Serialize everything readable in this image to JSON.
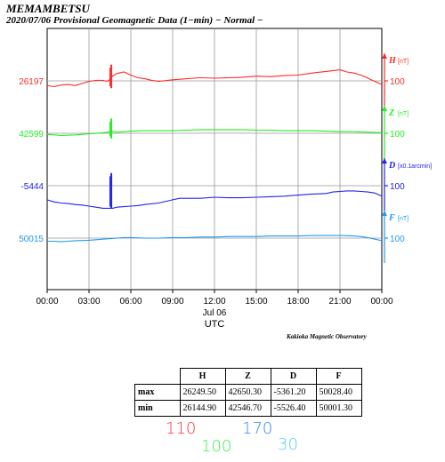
{
  "header": {
    "title": "MEMAMBETSU",
    "subtitle": "2020/07/06  Provisional Geomagnetic Data (1−min)  − Normal −"
  },
  "chart_data": {
    "type": "line",
    "x_ticks": [
      "00:00",
      "03:00",
      "06:00",
      "09:00",
      "12:00",
      "15:00",
      "18:00",
      "21:00",
      "00:00"
    ],
    "x_date_label": "Jul 06",
    "xlabel": "UTC",
    "series": [
      {
        "name": "H",
        "unit": "[nT]",
        "base_value": "26197",
        "scale_label": "100",
        "color": "#ff2a2a",
        "x": [
          0,
          0.5,
          1,
          1.5,
          2,
          2.5,
          3,
          3.5,
          4,
          4.3,
          4.5,
          4.6,
          4.7,
          5,
          5.5,
          6,
          6.5,
          7,
          7.5,
          8,
          9,
          10,
          11,
          12,
          13,
          14,
          15,
          16,
          17,
          18,
          19,
          20,
          21,
          21.5,
          22,
          22.5,
          23,
          23.5,
          24
        ],
        "y": [
          26188,
          26186,
          26189,
          26190,
          26188,
          26192,
          26196,
          26198,
          26198,
          26196,
          26200,
          26203,
          26206,
          26211,
          26214,
          26208,
          26203,
          26201,
          26198,
          26196,
          26199,
          26201,
          26203,
          26202,
          26203,
          26204,
          26206,
          26205,
          26207,
          26208,
          26212,
          26215,
          26218,
          26214,
          26212,
          26208,
          26202,
          26196,
          26190
        ],
        "spike": {
          "x": 4.6,
          "min": 26183,
          "max": 26228
        }
      },
      {
        "name": "Z",
        "unit": "[nT]",
        "base_value": "42599",
        "scale_label": "100",
        "color": "#22ee22",
        "x": [
          0,
          1,
          2,
          3,
          4,
          4.6,
          5,
          6,
          7,
          8,
          9,
          10,
          11,
          12,
          13,
          14,
          15,
          16,
          17,
          18,
          19,
          20,
          21,
          22,
          23,
          24
        ],
        "y": [
          42597,
          42595,
          42596,
          42598,
          42600,
          42602,
          42601,
          42603,
          42604,
          42604,
          42604,
          42605,
          42606,
          42606,
          42606,
          42606,
          42605,
          42605,
          42604,
          42604,
          42604,
          42603,
          42602,
          42602,
          42601,
          42600
        ],
        "spike": {
          "x": 4.6,
          "min": 42589,
          "max": 42627
        }
      },
      {
        "name": "D",
        "unit": "[x0.1arcmin]",
        "base_value": "-5444",
        "scale_label": "100",
        "color": "#2222ee",
        "x": [
          0,
          0.5,
          1,
          1.5,
          2,
          2.5,
          3,
          3.5,
          4,
          4.5,
          4.7,
          5,
          5.5,
          6,
          6.5,
          7,
          8,
          9,
          9.5,
          10,
          11,
          12,
          13,
          14,
          15,
          16,
          17,
          18,
          19,
          20,
          20.5,
          21,
          21.5,
          22,
          22.5,
          23,
          23.5,
          24
        ],
        "y": [
          -5471,
          -5475,
          -5477,
          -5478,
          -5480,
          -5481,
          -5483,
          -5485,
          -5487,
          -5487,
          -5487,
          -5485,
          -5484,
          -5483,
          -5482,
          -5480,
          -5477,
          -5471,
          -5468,
          -5468,
          -5468,
          -5466,
          -5467,
          -5467,
          -5466,
          -5465,
          -5464,
          -5462,
          -5460,
          -5459,
          -5456,
          -5455,
          -5454,
          -5454,
          -5455,
          -5456,
          -5458,
          -5464
        ],
        "spike": {
          "x": 4.6,
          "min": -5488,
          "max": -5420
        }
      },
      {
        "name": "F",
        "unit": "[nT]",
        "base_value": "50015",
        "scale_label": "100",
        "color": "#2299ee",
        "x": [
          0,
          0.5,
          1,
          1.5,
          2,
          3,
          4,
          4.5,
          5,
          5.5,
          6,
          7,
          8,
          9,
          10,
          11,
          12,
          13,
          14,
          15,
          16,
          17,
          18,
          19,
          20,
          21,
          22,
          22.5,
          23,
          23.5,
          24
        ],
        "y": [
          50009,
          50009,
          50008,
          50009,
          50010,
          50011,
          50013,
          50014,
          50015,
          50016,
          50016,
          50015,
          50015,
          50016,
          50016,
          50017,
          50017,
          50018,
          50018,
          50018,
          50019,
          50019,
          50019,
          50020,
          50020,
          50020,
          50019,
          50018,
          50016,
          50013,
          50010
        ]
      }
    ],
    "grid": true
  },
  "credit": "Kakioka Magnetic Observatory",
  "stats": {
    "headers": [
      "",
      "H",
      "Z",
      "D",
      "F"
    ],
    "rows": [
      {
        "label": "max",
        "values": [
          "26249.50",
          "42650.30",
          "-5361.20",
          "50028.40"
        ]
      },
      {
        "label": "min",
        "values": [
          "26144.90",
          "42546.70",
          "-5526.40",
          "50001.30"
        ]
      }
    ]
  },
  "handwritten": [
    {
      "text": "110",
      "color": "#ff3344"
    },
    {
      "text": "100",
      "color": "#44ee44"
    },
    {
      "text": "170",
      "color": "#3388ee"
    },
    {
      "text": "30",
      "color": "#55ccee"
    }
  ]
}
